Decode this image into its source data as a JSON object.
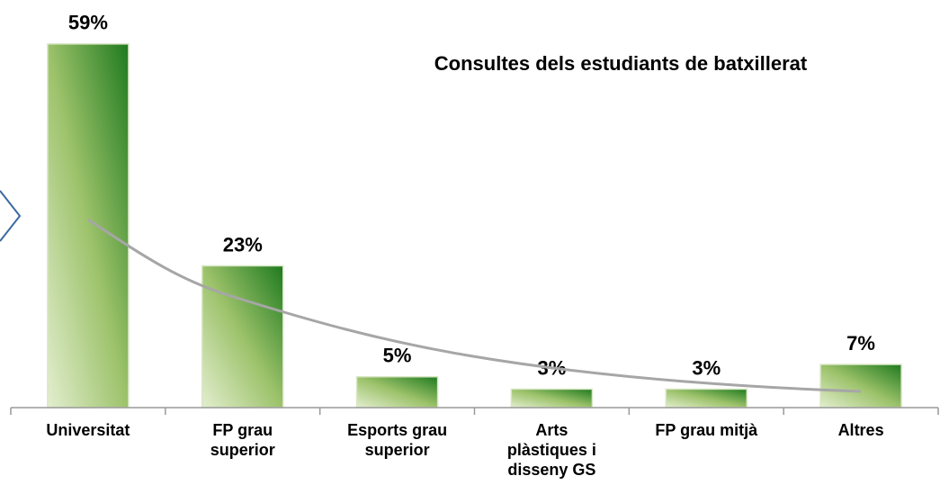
{
  "chart_data": {
    "type": "bar",
    "title": "Consultes dels  estudiants de batxillerat",
    "categories": [
      "Universitat",
      "FP grau superior",
      "Esports grau superior",
      "Arts plàstiques i disseny GS",
      "FP grau mitjà",
      "Altres"
    ],
    "values": [
      59,
      23,
      5,
      3,
      3,
      7
    ],
    "value_labels": [
      "59%",
      "23%",
      "5%",
      "3%",
      "3%",
      "7%"
    ],
    "color": "#1f7a1f"
  }
}
